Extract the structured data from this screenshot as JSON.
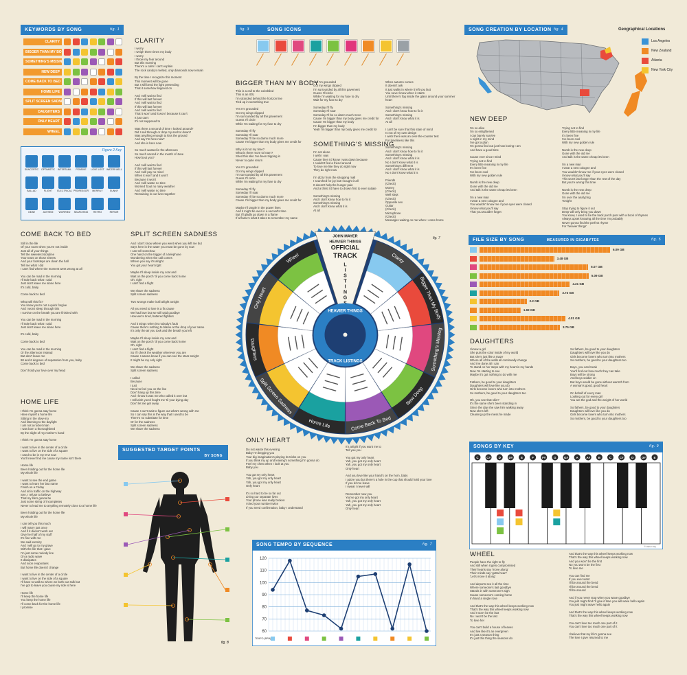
{
  "keywords": {
    "header": "KEYWORDS BY SONG",
    "fig": "fig. 1",
    "songs": [
      "CLARITY",
      "BIGGER THAN MY BODY",
      "SOMETHING'S MISSING",
      "NEW DEEP",
      "COME BACK TO BED",
      "HOME LIFE",
      "SPLIT SCREEN SADNESS",
      "DAUGHTERS",
      "ONLY HEART",
      "WHEEL"
    ],
    "icon_colors": [
      "#f08a24",
      "#e94a3c",
      "#3a93d6",
      "#f4c430",
      "#7cc242",
      "#9b59b6",
      "#ffffff"
    ]
  },
  "figure_key": {
    "label": "Figure 2 Key",
    "items": [
      "SUNCERTIC",
      "OPTIMISTIC",
      "INTERTAINL",
      "PENSIVE",
      "LOVE LOST",
      "WATER WELL",
      "BALLAD",
      "FLIGHT",
      "ELECTRICAL",
      "PROFESSOR",
      "MERRILY",
      "SUNNY",
      "GEAR",
      "ANTHEM",
      "WORRIED",
      "SEARCHING",
      "RETRO",
      "REPAIR"
    ]
  },
  "song_icons": {
    "header": "SONG ICONS",
    "fig": "fig. 3",
    "colors": [
      "#87c9ef",
      "#e94a3c",
      "#e0487f",
      "#1aa1a0",
      "#7cc242",
      "#e1357c",
      "#f08a24",
      "#f4c430",
      "#9aa1a6"
    ]
  },
  "location": {
    "header": "SONG CREATION BY LOCATION",
    "fig": "fig. 4",
    "legend_title": "Geographical Locations",
    "legend": [
      {
        "label": "Los Angeles",
        "color": "#3a93d6"
      },
      {
        "label": "New Zealand",
        "color": "#f08a24"
      },
      {
        "label": "Atlanta",
        "color": "#e94a3c"
      },
      {
        "label": "New York City",
        "color": "#f4c430"
      }
    ]
  },
  "clarity": {
    "title": "CLARITY",
    "col1": "I worry\nI weigh three times my body\nI worry\nI throw my fear around\nBut this morning\nThere's a calm I can't explain\nThe rock candy's melted, only diamonds now remain\n\nBy the time I recognize this moment\nThis moment will be gone\nBut I will bend the light pretending\nThat it somehow lingered on\n\nAnd I will wait to find\nIf this will last forever\nAnd I will wait to find\nIf this will last forever\nAnd I will wait to find\nThat it won't and it won't because it can't\nIt just can't\nIt's not supposed to\n\nWas there a second of time I looked around?\nDid I sail through or drop my anchor down?\nWas anything enough to kiss the ground\nAnd say I'm here now?\nAnd she is here now\n\nSo much wasted in the afternoon\nSo much sacred in the month of June\nHow bout you?\n\nAnd I will wait to find\nIf this will last forever\nAnd I will pay no mind\nWhen it won't and it won't\nBecause it won't\nAnd I will waste no time\nWorried 'bout no rainy weather\nAnd I will waste no time\nRemaining in our lives together"
  },
  "bigger": {
    "title": "BIGGER THAN MY BODY",
    "col1": "This is a call to the colorblind\nThis is an IOU\nI'm stranded behind the horizon line\nTied up in something true\n\nYes I'm grounded\nGot my wings clipped\nI'm surrounded by all this pavement\nGuess I'll circle\nWhile I'm waiting for my fuse to dry\n\nSomeday I'll fly\nSomeday I'll soar\nSomeday I'll be so damn much more\nCause I'm bigger than my body gives me credit for\n\nWhy is it not my time?\nWhat is there more to learn?\nShed this skin I've been tripping in\nNever to quite return\n\nYes I'm grounded\nGot my wings clipped\nI'm surrounded by all this pavement\nGuess I'll circle\nWhile I'm waiting for my fuse to dry\n\nSomeday I'll fly\nSomeday I'll soar\nSomeday I'll be so damn much more\nCause I'm bigger than my body gives me credit for\n\nMaybe I'll tangle in the power lines\nAnd it might be over in a second's time\nBut I'll gladly go down in a flame\nIf a flame's what it takes to remember my name",
    "col2": "Yes I'm grounded\nGot my wings clipped\nI'm surrounded by all this pavement\nGuess I'll circle\nWhile I'm waiting for my fuse to dry\nWait for my fuse to dry\n\nSomeday I'll fly\nSomeday I'll soar\nSomeday I'll be so damn much more\nCause I'm bigger than my body gives me credit for\nCause I'm bigger than my body\nI'm bigger than my body\nYeah I'm bigger than my body gives me credit for"
  },
  "missing": {
    "title": "SOMETHING'S MISSING",
    "col1": "I'm not alone\nI wish I was\nCause then I'd know I was down because\nI couldn't find a friend around\nTo love me like they do right now\nThey do right now\n\nI'm dizzy from the shopping mall\nI searched for joy but I bought it all\nIt doesn't help the hunger pain\nAnd a thirst I'd have to drown first to ever satiate\n\nSomething's missing\nAnd I don't know how to fix it\nSomething's missing\nAnd I don't know what it is\nAt all",
    "col2": "When autumn comes\nIt doesn't ask\nIt just walks in where it left you last\nYou never know when it starts\nUntil there's fog inside the glass around your summer heart\n\nSomething's missing\nAnd I don't know how to fix it\nSomething's missing\nAnd I don't know what it is\nAt all\n\nI can't be sure that this state of mind\nIs not of my own design\nI wish there was an over-the-counter test\nFor loneliness like this\n\nSomething's missing\nAnd I don't know how to fix it\nSomething's missing\nAnd I don't know what it is\nNo I don't know what it is\nSomething's different\nAnd I don't know what it is\nNo I don't know what it is\n\nFriends\n(Check)\nMoney\n(Check)\nWell slept\n(Check)\nOpposite sex\nGuitar\n(Check)\nMicrophone\n(Check)\nMessages waiting on me when I come home"
  },
  "wheel_graphic": {
    "top1": "JOHN MAYER",
    "top2": "HEAVIER THINGS",
    "top3": "OFFICIAL",
    "top4": "TRACK",
    "top5": "LISTINGS",
    "center1": "HEAVIER THINGS",
    "center2": "TRACK LISTINGS",
    "fig": "fig. 7",
    "segments": [
      {
        "label": "Clarity",
        "color": "#87c9ef"
      },
      {
        "label": "Bigger Than My Body",
        "color": "#e94a3c"
      },
      {
        "label": "Something's Missing",
        "color": "#e0487f"
      },
      {
        "label": "New Deep",
        "color": "#7cc242"
      },
      {
        "label": "Come Back To Bed",
        "color": "#9b59b6"
      },
      {
        "label": "Home Life",
        "color": "#1aa1a0"
      },
      {
        "label": "Split Screen Sadness",
        "color": "#f4c430"
      },
      {
        "label": "Daughters",
        "color": "#f08a24"
      },
      {
        "label": "Only Heart",
        "color": "#f4c430"
      },
      {
        "label": "Wheel",
        "color": "#7cc242"
      }
    ]
  },
  "newdeep": {
    "title": "NEW DEEP",
    "col1": "I'm so alive\nI'm so enlightened\nI can barely survive\nA night in my mind\nI've got a plan\nI'm gonna find out just how boring I am\nAnd have a good time\n\nCause ever since I tried\nTrying not to find\nEvery little meaning in my life\nIt's been fine\nI've been cool\nWith my new golden rule\n\nNumb is the new deep\nGone with the old me\nAnd talk is the same cheap it's been\n\nI'm a new man\nI wear a new cologne and\nYou wouldn't know me if your eyes were closed\nI know what you'll say\nThat you wouldn't forget",
    "col2": "Trying not to find\nEvery little meaning in my life\nIt's been fine\nI've been cool\nWith my new golden rule\n\nNumb is the new deep\nGone with the old me\nAnd talk is the same cheap it's been\n\nI'm a new man\nI wear a new cologne and\nYou wouldn't know me if your eyes were closed\nI know what you'll say\nThis won't last longer than the rest of the day\nBut you're wrong this time\n\nNumb is the new deep\nGone with the old me\nI'm over the analyzing\nTonight\n\nStop trying to figure it out\nDeep will only bring you down\nYou know, I used to be the back porch poet with a book of rhymes\nAlways upset knowing all the time I'm probably\nNever gonna find the perfect rhyme\nFor 'heavier things'"
  },
  "filesize": {
    "header": "FILE SIZE BY SONG",
    "subheader": "MEASURED IN GIGABYTES",
    "fig": "fig. 5",
    "values": [
      "6.09 GB",
      "3.48 GB",
      "5.07 GB",
      "5.09 GB",
      "4.21 GB",
      "3.73 GB",
      "2.2 GB",
      "1.92 GB",
      "4.01 GB",
      "3.75 GB"
    ],
    "colors": [
      "#87c9ef",
      "#e94a3c",
      "#e0487f",
      "#7cc242",
      "#9b59b6",
      "#1aa1a0",
      "#f4c430",
      "#f08a24",
      "#f4c430",
      "#7cc242"
    ]
  },
  "daughters": {
    "title": "DAUGHTERS",
    "col1": "I know a girl\nShe puts the color inside of my world\nBut she's just like a maze\nWhere all of the walls all continually change\nAnd I've done all I can\nTo stand on her steps with my heart in my hands\nNow I'm starting to see\nMaybe it's got nothing to do with me\n\nFathers, be good to your daughters\nDaughters will love like you do\nGirls become lovers who turn into mothers\nSo mothers, be good to your daughters too\n\nOh, you see that skin?\nIt's the same she's been standing in\nSince the day she saw him walking away\nNow she's left\nCleaning up the mess he made",
    "col2": "So fathers, be good to your daughters\nDaughters will love like you do\nGirls become lovers who turn into mothers\nSo mothers, be good to your daughters too\n\nBoys, you can break\nYou'll find out how much they can take\nBoys will be strong\nAnd boys soldier on\nBut boys would be gone without warmth from\nA woman's good, good heart\n\nOn behalf of every man\nLooking out for every girl\nYou are the god and the weight of her world\n\nSo fathers, be good to your daughters\nDaughters will love like you do\nGirls become lovers who turn into mothers\nSo mothers, be good to your daughters too"
  },
  "comeback": {
    "title": "COME BACK TO BED",
    "col1": "Still in the life\nOf your room when you're not inside\nJust all of your things\nTell the sweetest storyline\nYour tears on those sheets\nAnd your footsteps are down the hall\nTell me what I did\nI can't find where the moment went wrong at all\n\nYou can be mad in the morning\nI'll take back what I said\nJust don't leave me alone here\nIt's cold, baby\n\nCome back to bed\n\nWhat will this fix?\nYou know you're not a quick forgive\nAnd I won't sleep through this\nI survive on the breath you are finished with\n\nYou can be mad in the morning\nI'll take back what I said\nJust don't leave me alone here\n\nIt's cold, baby\n\nCome back to bed\n\nYou can be mad in the morning\nOr the afternoon instead\nBut don't leave me\n98 and 6 degrees of separation from you, baby\nCome back to bed\n\nDon't hold your love over my head"
  },
  "split": {
    "title": "SPLIT SCREEN SADNESS",
    "col1": "And I don't know where you went when you left me but\nSays here in the water you must be gone by now\nI can tell somehow\nOne hand on the trigger of a telephone\nWondering when the call comes\nWhere you say it's alright\nYou got your heart right\n\nMaybe I'll sleep inside my coat and\nWait on the porch 'til you come back home\nOh, right\nI can't find a flight\n\nWe share the sadness\nSplit screen sadness\n\nTwo wrongs make it all alright tonight\n\nAll you need to love is a fix cause\nWe had love but we still said goodbye\nHow we're tired, battered fighters\n\nAnd it stings when it's nobody's fault\nCause there's nothing to blame at the drop of your name\nIt's only the air you took and the breath you left\n\nMaybe I'll sleep inside my coat and\nWait on the porch 'til you come back home\nOh, right\nI can't find a flight\nSo I'll check the weather wherever you are\nCause I wanna know if you can see the stars tonight\nIt might be my only right\n\nWe share the sadness\nSplit screen sadness\n\nI called\nBecause\nI just\nNeed to feel you on the line\nDon't hang up this time\nAnd I know it was me who called it over but\nI still wish you'd fought me 'til your dying day\nDon't let me get away\n\nCause I can't wait to figure out what's wrong with me\nSo I can say this is the way that I used to be\nThere's no substitute for time\nOr for the sadness\nSplit screen sadness\nWe share the sadness"
  },
  "homelife": {
    "title": "HOME LIFE",
    "col1": "I think I'm gonna stay home\nHave myself a home life\nSitting in the slow-mo\nAnd listening to the daylight\nI am not a rocket man\nI was born a thoroughbred\nBy the slight of my mother's hand\n\nI think I'm gonna stay home\n\nI want to live in the center of a circle\nI want to live on the side of a square\nI used to be in my M-Z now\nYou'll never find me cause my name isn't there\n\nHome life\nBeen holding out for the home life\nMy whole life\n\nI want to see the end game\nI want to learn her last name\nFinish on a Friday\nAnd sit in traffic on the highway\nSee, I refuse to believe\nThat my life's gonna be\nJust some string of incompletes\nNever to lead me to anything remotely close to a home life\n\nBeen holding out for the home life\nMy whole life\n\nI can tell you this much\nI will marry just once\nAnd if it doesn't work out\nGive her half of my stuff\nIt's fine with me\nWe said eternity\nAnd I will go to my grave\nWith the life that I gave\nI'm just some melody line\nOn a radio wave\nIt dissipates\nAnd soon evaporates\nBut home life doesn't change\n\nI want to live in the center of a circle\nI want to live on the side of a square\nI'll have to walk to where we both can talk but\nI've got to leave you cause my ride is here\n\nHome life\nI'll keep the home life\nYou keep the home life\nI'll come back for the home life\nI promise"
  },
  "onlyheart": {
    "title": "ONLY HEART",
    "col1": "Do not waste this evening\nBaby I'm begging you\nYour big imagination's playing its tricks on you\nIf you think my up and leaving's something I'm gonna do\nFeel my chest when I look at you\nBaby you\n\nYou got my only heart\nYah, you got my only heart\nYah, you got my only heart\nOnly heart\n\nIt's so hard to be so far out\nLiving our separate lives\nYour phone was really broken\nI tried your number twice\nIf you need confirmation, baby I understand",
    "col2": "It's alright if you want me to\nTell you you\n\nYou got my only heart\nYah, you got my only heart\nYah, you got my only heart\nOnly heart\n\nAnd you love like your hand's on the horn, baby\nI adore you but there's a hole in the cup that should hold your love\nIf you let me leave\nI swear I never will\n\nRemember now you\nYou've got my only heart\nYah, you got my only heart\nYah, you got my only heart\nOnly heart"
  },
  "target": {
    "header": "SUGGESTED TARGET POINTS",
    "subheader": "BY SONG",
    "fig": "fig. 8",
    "colors": [
      "#87c9ef",
      "#e94a3c",
      "#e0487f",
      "#7cc242",
      "#9b59b6",
      "#1aa1a0",
      "#f4c430",
      "#f08a24",
      "#f4c430",
      "#7cc242"
    ]
  },
  "tempo": {
    "header": "SONG TEMPO BY SEQUENCE",
    "fig": "fig. 7",
    "yaxis": [
      "120",
      "110",
      "100",
      "90",
      "80",
      "70",
      "60"
    ],
    "ylabel": "TEMPO (BPM)",
    "values": [
      94,
      118,
      77,
      73,
      62,
      105,
      107,
      62,
      115,
      60
    ],
    "colors": [
      "#87c9ef",
      "#e94a3c",
      "#e0487f",
      "#7cc242",
      "#9b59b6",
      "#1aa1a0",
      "#f4c430",
      "#f08a24",
      "#f4c430",
      "#7cc242"
    ]
  },
  "keys": {
    "header": "SONGS BY KEY",
    "fig": "fig. 9",
    "labels": [
      "C",
      "C#",
      "D",
      "D#",
      "E",
      "F",
      "F#",
      "G",
      "G#",
      "A",
      "A#",
      "B",
      "C",
      "C#",
      "D",
      "D#",
      "E"
    ],
    "credit": "© Heber Hay"
  },
  "wheel_song": {
    "title": "WHEEL",
    "col1": "People have the right to fly\nAnd still when it gets compromised\nTheir hearts say 'move along'\nTheir minds say 'gotta heart'\n'Let's move it along'\n\nAnd airports see it all the time\nWhere someone's last goodbye\nStands in with someone's sigh\nCause someone's coming home\nIn hand a single rose\n\nAnd that's the way this wheel keeps working now\nThat's the way this wheel keeps working now\nAnd I won't be the last\nNo I won't be the last\nTo love her\n\nYou can't build a house of leaves\nAnd live like it's an evergreen\nIt's just a season thing\nIt's just this thing the seasons do",
    "col2": "And that's the way this wheel keeps working now\nThat's the way this wheel keeps working now\nAnd you won't be the first\nNo you won't be the first\nTo love me\n\nYou can find me\nIf you ever want\nI'll be around the bend\nI'll be around the bend\nI'll be around\n\nAnd if you never stop when you wave goodbye\nYou just might find I'll give it time you will wave hello again\nYou just might wave hello again\n\nAnd that's the way this wheel keeps working now\nThat's the way this wheel keeps working now\n\nYou can't love too much one part of it\nYou can't love too much one part of it\n\nI believe that my life's gonna see\nThe love I give returned to me"
  }
}
